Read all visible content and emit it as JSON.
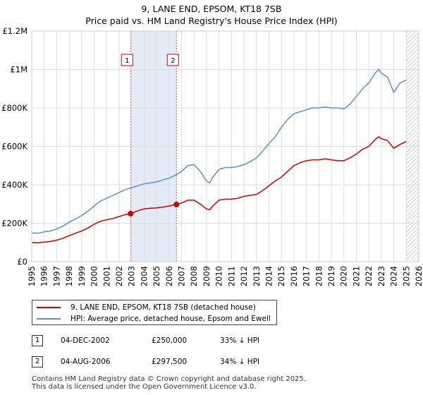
{
  "chart_data": {
    "type": "line",
    "title": "9, LANE END, EPSOM, KT18 7SB",
    "subtitle": "Price paid vs. HM Land Registry's House Price Index (HPI)",
    "xlabel": "",
    "ylabel": "",
    "xlim": [
      1995.0,
      2026.0
    ],
    "ylim": [
      0,
      1200000
    ],
    "y_ticks": [
      0,
      200000,
      400000,
      600000,
      800000,
      1000000,
      1200000
    ],
    "y_tick_labels": [
      "£0",
      "£200K",
      "£400K",
      "£600K",
      "£800K",
      "£1M",
      "£1.2M"
    ],
    "x_ticks": [
      1995,
      1996,
      1997,
      1998,
      1999,
      2000,
      2001,
      2002,
      2003,
      2004,
      2005,
      2006,
      2007,
      2008,
      2009,
      2010,
      2011,
      2012,
      2013,
      2014,
      2015,
      2016,
      2017,
      2018,
      2019,
      2020,
      2021,
      2022,
      2023,
      2024,
      2025,
      2026
    ],
    "x_tick_labels": [
      "1995",
      "1996",
      "1997",
      "1998",
      "1999",
      "2000",
      "2001",
      "2002",
      "2003",
      "2004",
      "2005",
      "2006",
      "2007",
      "2008",
      "2009",
      "2010",
      "2011",
      "2012",
      "2013",
      "2014",
      "2015",
      "2016",
      "2017",
      "2018",
      "2019",
      "2020",
      "2021",
      "2022",
      "2023",
      "2024",
      "2025",
      "2026"
    ],
    "grid": true,
    "hatched_after": 2025.0,
    "highlight_range": [
      2002.92,
      2006.59
    ],
    "series": [
      {
        "name": "9, LANE END, EPSOM, KT18 7SB (detached house)",
        "color": "#cc0000",
        "x": [
          1995,
          1995.5,
          1996,
          1996.5,
          1997,
          1997.5,
          1998,
          1998.5,
          1999,
          1999.5,
          2000,
          2000.5,
          2001,
          2001.5,
          2002,
          2002.5,
          2002.92,
          2003.5,
          2004,
          2004.5,
          2005,
          2005.5,
          2006,
          2006.59,
          2007,
          2007.5,
          2008,
          2008.5,
          2009,
          2009.25,
          2009.5,
          2010,
          2010.5,
          2011,
          2011.5,
          2012,
          2012.5,
          2013,
          2013.5,
          2014,
          2014.5,
          2015,
          2015.5,
          2016,
          2016.5,
          2017,
          2017.5,
          2018,
          2018.5,
          2019,
          2019.5,
          2020,
          2020.5,
          2021,
          2021.5,
          2022,
          2022.5,
          2022.8,
          2023,
          2023.5,
          2024,
          2024.5,
          2025
        ],
        "y": [
          100000,
          98000,
          102000,
          105000,
          112000,
          122000,
          135000,
          148000,
          160000,
          175000,
          195000,
          210000,
          218000,
          225000,
          235000,
          245000,
          250000,
          265000,
          275000,
          278000,
          280000,
          284000,
          290000,
          297500,
          305000,
          320000,
          320000,
          300000,
          275000,
          270000,
          290000,
          320000,
          325000,
          325000,
          330000,
          340000,
          345000,
          350000,
          370000,
          395000,
          420000,
          440000,
          470000,
          500000,
          515000,
          525000,
          530000,
          530000,
          535000,
          530000,
          525000,
          525000,
          540000,
          560000,
          585000,
          600000,
          635000,
          650000,
          640000,
          630000,
          590000,
          610000,
          625000
        ]
      },
      {
        "name": "HPI: Average price, detached house, Epsom and Ewell",
        "color": "#5b8fd0",
        "x": [
          1995,
          1995.5,
          1996,
          1996.5,
          1997,
          1997.5,
          1998,
          1998.5,
          1999,
          1999.5,
          2000,
          2000.5,
          2001,
          2001.5,
          2002,
          2002.5,
          2003,
          2003.5,
          2004,
          2004.5,
          2005,
          2005.5,
          2006,
          2006.5,
          2007,
          2007.5,
          2008,
          2008.5,
          2009,
          2009.25,
          2009.5,
          2010,
          2010.5,
          2011,
          2011.5,
          2012,
          2012.5,
          2013,
          2013.5,
          2014,
          2014.5,
          2015,
          2015.5,
          2016,
          2016.5,
          2017,
          2017.5,
          2018,
          2018.5,
          2019,
          2019.5,
          2020,
          2020.5,
          2021,
          2021.5,
          2022,
          2022.5,
          2022.8,
          2023,
          2023.5,
          2024,
          2024.5,
          2025
        ],
        "y": [
          150000,
          148000,
          155000,
          160000,
          170000,
          185000,
          205000,
          222000,
          240000,
          262000,
          290000,
          315000,
          330000,
          345000,
          360000,
          375000,
          385000,
          395000,
          405000,
          410000,
          415000,
          425000,
          435000,
          450000,
          470000,
          500000,
          505000,
          470000,
          420000,
          410000,
          440000,
          480000,
          490000,
          490000,
          495000,
          505000,
          520000,
          540000,
          575000,
          615000,
          650000,
          700000,
          740000,
          770000,
          780000,
          790000,
          800000,
          800000,
          805000,
          800000,
          800000,
          795000,
          820000,
          860000,
          900000,
          930000,
          980000,
          1000000,
          980000,
          960000,
          880000,
          930000,
          945000
        ]
      }
    ],
    "sales": [
      {
        "marker": "1",
        "x": 2002.92,
        "y": 250000
      },
      {
        "marker": "2",
        "x": 2006.59,
        "y": 297500
      }
    ]
  },
  "legend": {
    "items": [
      {
        "label": "9, LANE END, EPSOM, KT18 7SB (detached house)",
        "color": "#cc0000"
      },
      {
        "label": "HPI: Average price, detached house, Epsom and Ewell",
        "color": "#5b8fd0"
      }
    ]
  },
  "transactions": [
    {
      "marker": "1",
      "date": "04-DEC-2002",
      "price": "£250,000",
      "hpi": "33% ↓ HPI"
    },
    {
      "marker": "2",
      "date": "04-AUG-2006",
      "price": "£297,500",
      "hpi": "34% ↓ HPI"
    }
  ],
  "footer": {
    "line1": "Contains HM Land Registry data © Crown copyright and database right 2025.",
    "line2": "This data is licensed under the Open Government Licence v3.0."
  }
}
